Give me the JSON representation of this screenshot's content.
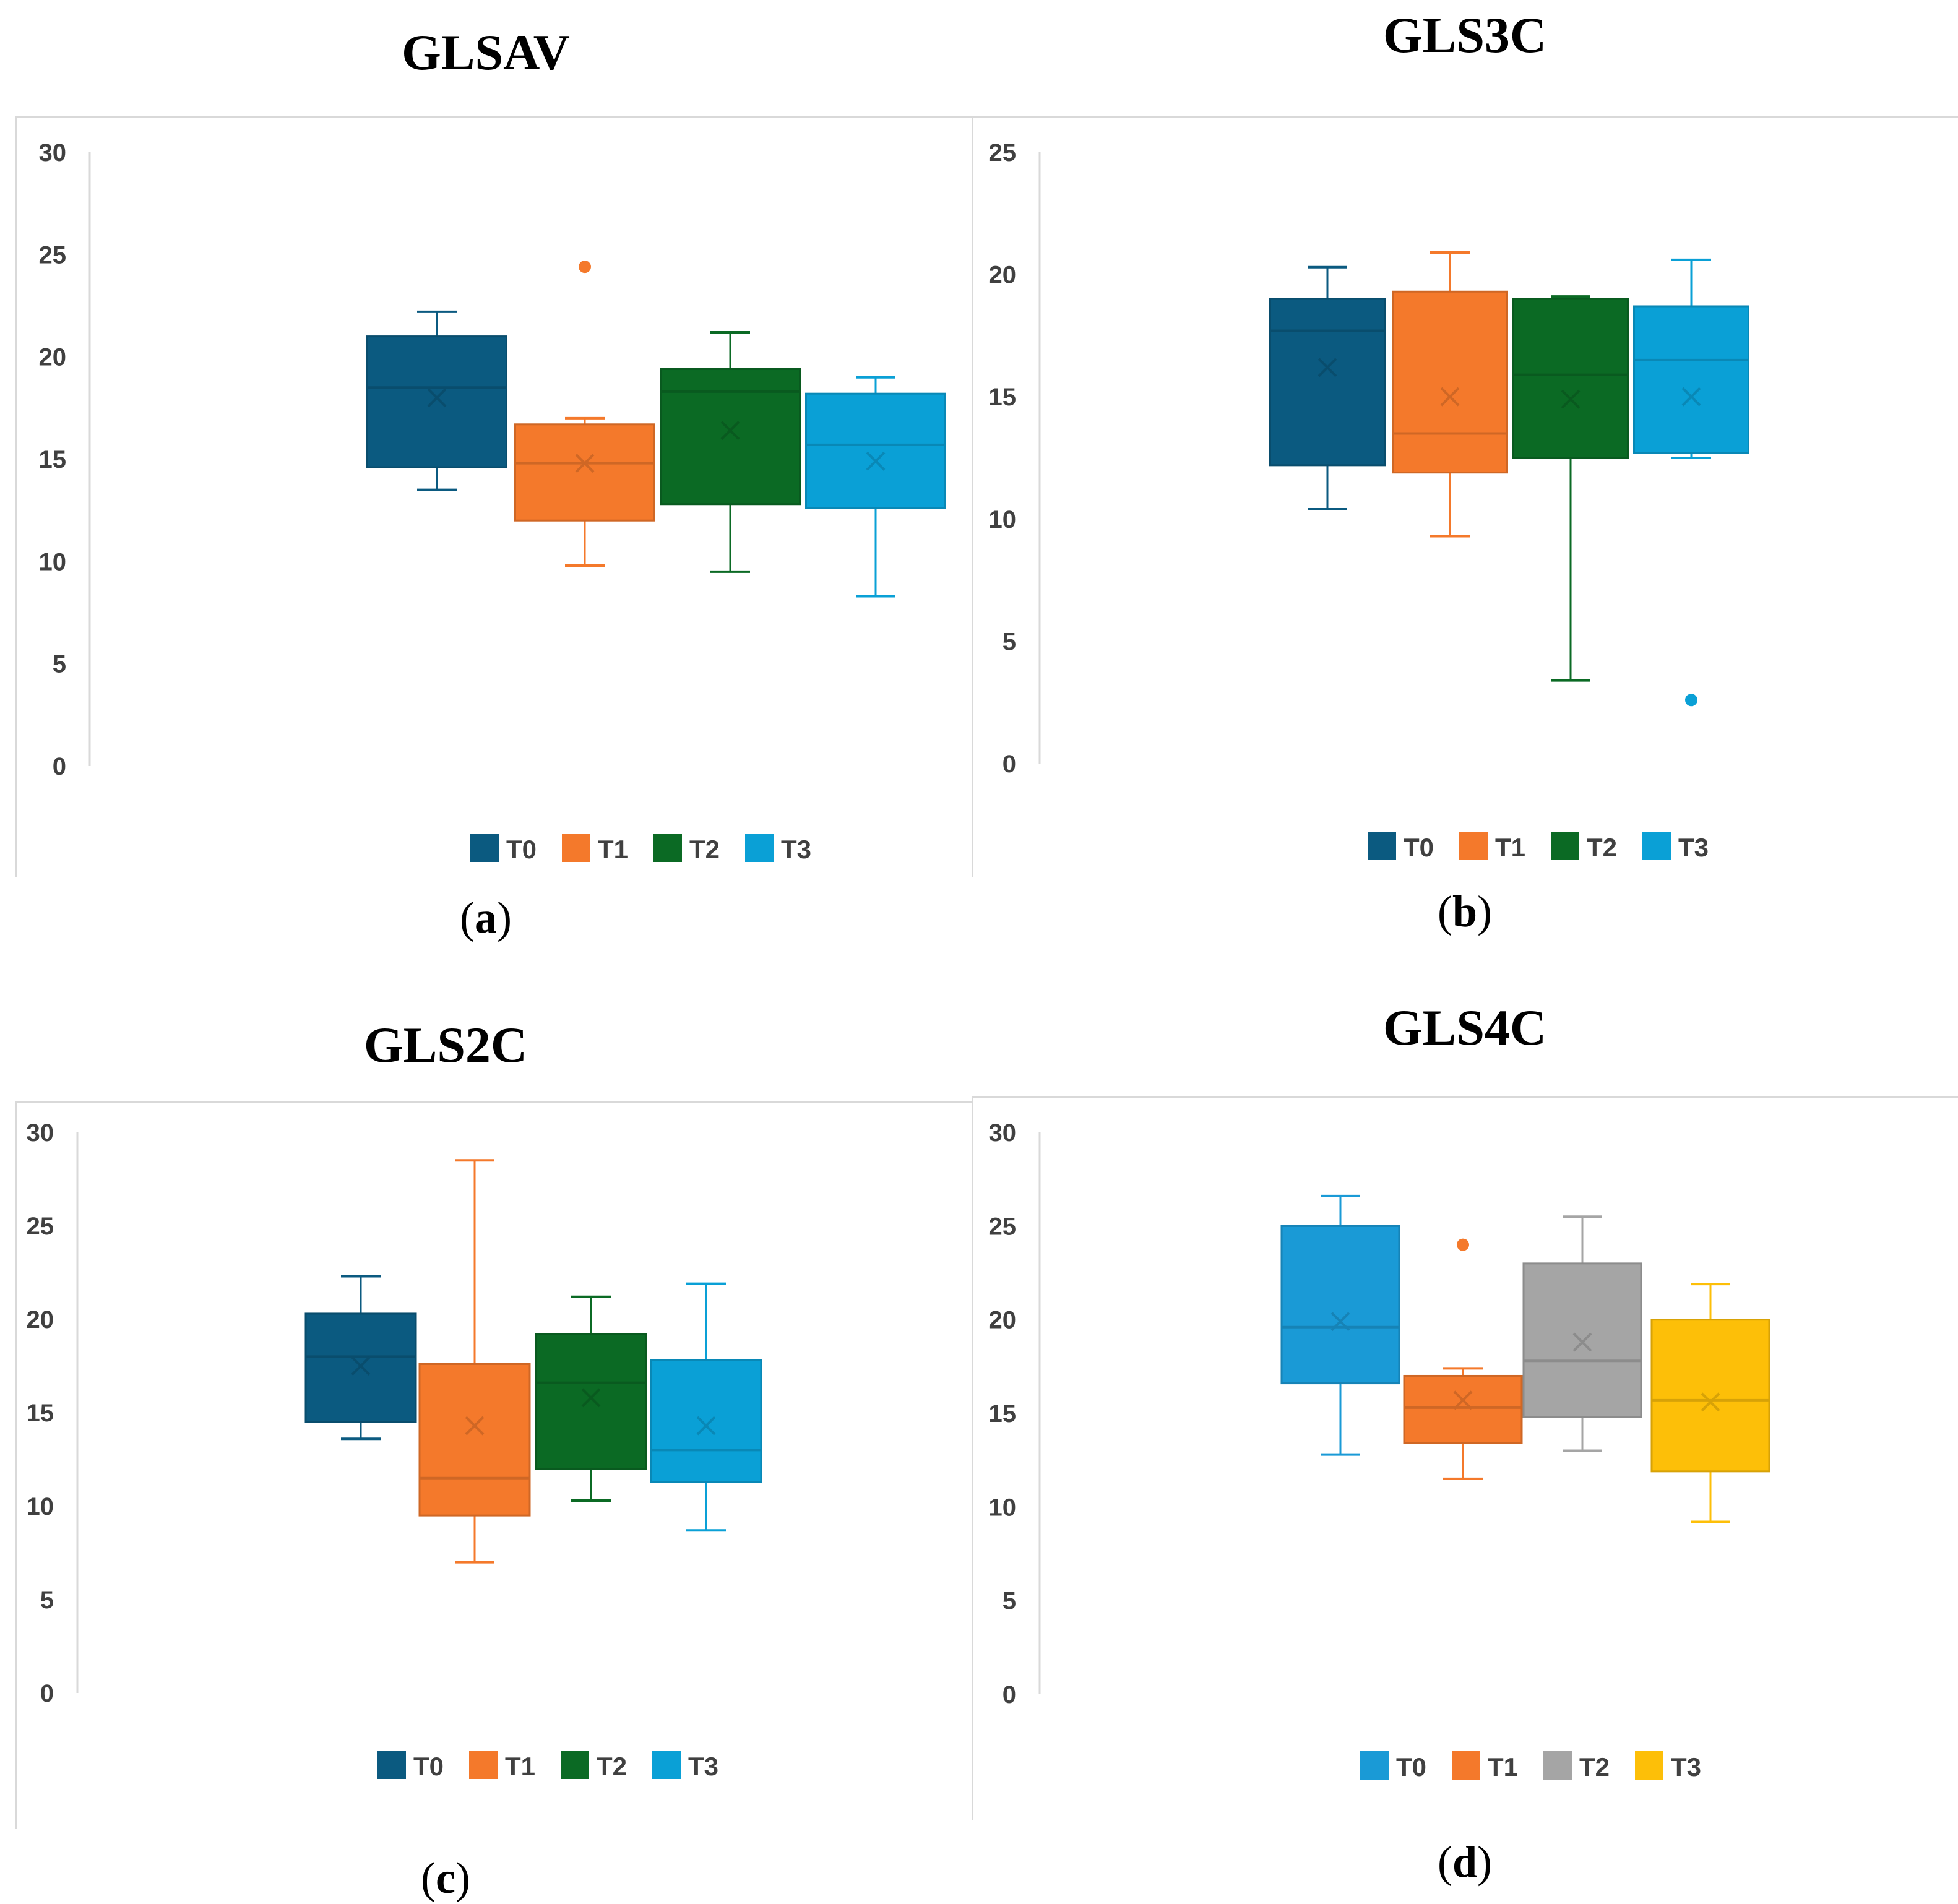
{
  "chart_data": [
    {
      "type": "box",
      "title": "GLSAV",
      "panel_label": "a",
      "ylim": [
        0,
        30
      ],
      "yticks": [
        0,
        5,
        10,
        15,
        20,
        25,
        30
      ],
      "legend_position": "bottom",
      "series": [
        {
          "name": "T0",
          "color": "#0b5a80",
          "min": 13.5,
          "q1": 14.6,
          "median": 18.5,
          "q3": 21.0,
          "max": 22.2,
          "mean": 18.0,
          "outliers": []
        },
        {
          "name": "T1",
          "color": "#f4792b",
          "min": 9.8,
          "q1": 12.0,
          "median": 14.8,
          "q3": 16.7,
          "max": 17.0,
          "mean": 14.8,
          "outliers": [
            24.4
          ]
        },
        {
          "name": "T2",
          "color": "#0b6a24",
          "min": 9.5,
          "q1": 12.8,
          "median": 18.3,
          "q3": 19.4,
          "max": 21.2,
          "mean": 16.4,
          "outliers": []
        },
        {
          "name": "T3",
          "color": "#0aa0d6",
          "min": 8.3,
          "q1": 12.6,
          "median": 15.7,
          "q3": 18.2,
          "max": 19.0,
          "mean": 14.9,
          "outliers": []
        }
      ]
    },
    {
      "type": "box",
      "title": "GLS3C",
      "panel_label": "b",
      "ylim": [
        0,
        25
      ],
      "yticks": [
        0,
        5,
        10,
        15,
        20,
        25
      ],
      "legend_position": "bottom",
      "series": [
        {
          "name": "T0",
          "color": "#0b5a80",
          "min": 10.4,
          "q1": 12.2,
          "median": 17.7,
          "q3": 19.0,
          "max": 20.3,
          "mean": 16.2,
          "outliers": []
        },
        {
          "name": "T1",
          "color": "#f4792b",
          "min": 9.3,
          "q1": 11.9,
          "median": 13.5,
          "q3": 19.3,
          "max": 20.9,
          "mean": 15.0,
          "outliers": []
        },
        {
          "name": "T2",
          "color": "#0b6a24",
          "min": 3.4,
          "q1": 12.5,
          "median": 15.9,
          "q3": 19.0,
          "max": 19.1,
          "mean": 14.9,
          "outliers": []
        },
        {
          "name": "T3",
          "color": "#0aa0d6",
          "min": 12.5,
          "q1": 12.7,
          "median": 16.5,
          "q3": 18.7,
          "max": 20.6,
          "mean": 15.0,
          "outliers": [
            2.6
          ]
        }
      ]
    },
    {
      "type": "box",
      "title": "GLS2C",
      "panel_label": "c",
      "ylim": [
        0,
        30
      ],
      "yticks": [
        0,
        5,
        10,
        15,
        20,
        25,
        30
      ],
      "legend_position": "bottom",
      "series": [
        {
          "name": "T0",
          "color": "#0b5a80",
          "min": 13.6,
          "q1": 14.5,
          "median": 18.0,
          "q3": 20.3,
          "max": 22.3,
          "mean": 17.5,
          "outliers": []
        },
        {
          "name": "T1",
          "color": "#f4792b",
          "min": 7.0,
          "q1": 9.5,
          "median": 11.5,
          "q3": 17.6,
          "max": 28.5,
          "mean": 14.3,
          "outliers": []
        },
        {
          "name": "T2",
          "color": "#0b6a24",
          "min": 10.3,
          "q1": 12.0,
          "median": 16.6,
          "q3": 19.2,
          "max": 21.2,
          "mean": 15.8,
          "outliers": []
        },
        {
          "name": "T3",
          "color": "#0aa0d6",
          "min": 8.7,
          "q1": 11.3,
          "median": 13.0,
          "q3": 17.8,
          "max": 21.9,
          "mean": 14.3,
          "outliers": []
        }
      ]
    },
    {
      "type": "box",
      "title": "GLS4C",
      "panel_label": "d",
      "ylim": [
        0,
        30
      ],
      "yticks": [
        0,
        5,
        10,
        15,
        20,
        25,
        30
      ],
      "legend_position": "bottom",
      "series": [
        {
          "name": "T0",
          "color": "#1a9ad6",
          "min": 12.8,
          "q1": 16.6,
          "median": 19.6,
          "q3": 25.0,
          "max": 26.6,
          "mean": 19.9,
          "outliers": []
        },
        {
          "name": "T1",
          "color": "#f4792b",
          "min": 11.5,
          "q1": 13.4,
          "median": 15.3,
          "q3": 17.0,
          "max": 17.4,
          "mean": 15.7,
          "outliers": [
            24.0
          ]
        },
        {
          "name": "T2",
          "color": "#a5a5a5",
          "min": 13.0,
          "q1": 14.8,
          "median": 17.8,
          "q3": 23.0,
          "max": 25.5,
          "mean": 18.8,
          "outliers": []
        },
        {
          "name": "T3",
          "color": "#fdbf08",
          "min": 9.2,
          "q1": 11.9,
          "median": 15.7,
          "q3": 20.0,
          "max": 21.9,
          "mean": 15.6,
          "outliers": []
        }
      ]
    }
  ]
}
